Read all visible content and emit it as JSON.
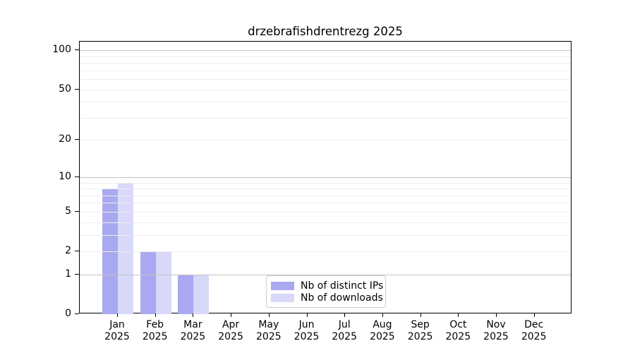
{
  "chart_data": {
    "type": "bar",
    "title": "drzebrafishdrentrezg 2025",
    "categories": [
      "Jan",
      "Feb",
      "Mar",
      "Apr",
      "May",
      "Jun",
      "Jul",
      "Aug",
      "Sep",
      "Oct",
      "Nov",
      "Dec"
    ],
    "x_tick_year": "2025",
    "series": [
      {
        "name": "Nb of distinct IPs",
        "color": "#a9a9f1",
        "values": [
          8,
          2,
          1,
          0,
          0,
          0,
          0,
          0,
          0,
          0,
          0,
          0
        ]
      },
      {
        "name": "Nb of downloads",
        "color": "#d8d8f8",
        "values": [
          9,
          2,
          1,
          0,
          0,
          0,
          0,
          0,
          0,
          0,
          0,
          0
        ]
      }
    ],
    "y_axis": {
      "scale": "log10(1+x)",
      "tick_values": [
        0,
        1,
        2,
        5,
        10,
        20,
        50,
        100
      ],
      "major_grid_values": [
        1,
        10,
        100
      ],
      "minor_grid_values": [
        2,
        3,
        4,
        5,
        6,
        7,
        8,
        9,
        20,
        30,
        40,
        50,
        60,
        70,
        80,
        90
      ],
      "ylim": [
        0,
        116
      ]
    },
    "legend": {
      "position": "lower center",
      "entries": [
        "Nb of distinct IPs",
        "Nb of downloads"
      ]
    },
    "colors": {
      "major_grid": "#c3c3c3",
      "minor_grid": "#ededed",
      "axis": "#000000",
      "background": "#ffffff"
    }
  }
}
